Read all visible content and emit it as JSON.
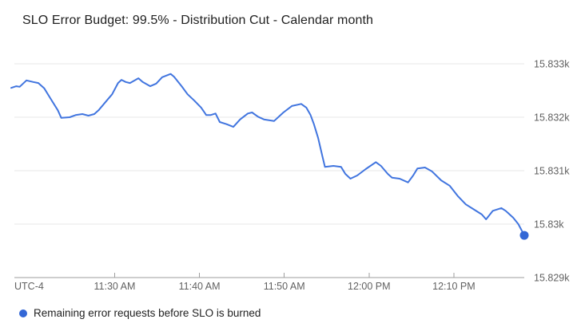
{
  "title": "SLO Error Budget: 99.5% - Distribution Cut - Calendar month",
  "legend": {
    "label": "Remaining error requests before SLO is burned",
    "marker_color": "#3367d6"
  },
  "colors": {
    "line": "#4175df",
    "endpoint_marker": "#3367d6",
    "gridline": "#e7e7e7",
    "axis_line": "#9e9e9e",
    "tick_label": "#616161",
    "title_text": "#212121",
    "background": "#ffffff"
  },
  "chart_data": {
    "type": "line",
    "title": "SLO Error Budget: 99.5% - Distribution Cut - Calendar month",
    "grid": true,
    "legend_position": "bottom-left",
    "x_axis": {
      "utc_offset_label": "UTC-4",
      "domain_minutes": [
        0,
        60.5
      ],
      "ticks": [
        {
          "label": "11:30 AM",
          "t": 12.2
        },
        {
          "label": "11:40 AM",
          "t": 22.2
        },
        {
          "label": "11:50 AM",
          "t": 32.2
        },
        {
          "label": "12:00 PM",
          "t": 42.2
        },
        {
          "label": "12:10 PM",
          "t": 52.2
        }
      ]
    },
    "y_axis": {
      "range": [
        15829,
        15833.2
      ],
      "ticks": [
        {
          "label": "15.833k",
          "v": 15833
        },
        {
          "label": "15.832k",
          "v": 15832
        },
        {
          "label": "15.831k",
          "v": 15831
        },
        {
          "label": "15.83k",
          "v": 15830
        },
        {
          "label": "15.829k",
          "v": 15829
        }
      ]
    },
    "series": [
      {
        "name": "Remaining error requests before SLO is burned",
        "color": "#4175df",
        "end_marker": true,
        "end_marker_color": "#3367d6",
        "points": [
          [
            0.0,
            15832.55
          ],
          [
            0.6,
            15832.58
          ],
          [
            1.0,
            15832.57
          ],
          [
            1.8,
            15832.69
          ],
          [
            2.6,
            15832.66
          ],
          [
            3.2,
            15832.64
          ],
          [
            3.9,
            15832.54
          ],
          [
            4.6,
            15832.36
          ],
          [
            5.5,
            15832.13
          ],
          [
            5.9,
            15831.99
          ],
          [
            6.9,
            15832.0
          ],
          [
            7.6,
            15832.04
          ],
          [
            8.4,
            15832.06
          ],
          [
            9.1,
            15832.03
          ],
          [
            9.8,
            15832.06
          ],
          [
            10.3,
            15832.13
          ],
          [
            11.1,
            15832.28
          ],
          [
            11.9,
            15832.43
          ],
          [
            12.6,
            15832.64
          ],
          [
            13.0,
            15832.7
          ],
          [
            13.5,
            15832.66
          ],
          [
            14.0,
            15832.64
          ],
          [
            15.0,
            15832.73
          ],
          [
            15.5,
            15832.66
          ],
          [
            16.4,
            15832.58
          ],
          [
            17.1,
            15832.63
          ],
          [
            17.8,
            15832.75
          ],
          [
            18.8,
            15832.81
          ],
          [
            19.2,
            15832.76
          ],
          [
            20.1,
            15832.58
          ],
          [
            20.8,
            15832.43
          ],
          [
            21.6,
            15832.31
          ],
          [
            22.4,
            15832.18
          ],
          [
            23.0,
            15832.04
          ],
          [
            23.5,
            15832.04
          ],
          [
            24.1,
            15832.07
          ],
          [
            24.6,
            15831.91
          ],
          [
            25.4,
            15831.87
          ],
          [
            26.2,
            15831.82
          ],
          [
            27.0,
            15831.96
          ],
          [
            27.9,
            15832.07
          ],
          [
            28.4,
            15832.09
          ],
          [
            29.1,
            15832.01
          ],
          [
            29.8,
            15831.96
          ],
          [
            31.0,
            15831.93
          ],
          [
            32.1,
            15832.09
          ],
          [
            33.1,
            15832.21
          ],
          [
            34.2,
            15832.25
          ],
          [
            34.8,
            15832.18
          ],
          [
            35.3,
            15832.04
          ],
          [
            35.7,
            15831.87
          ],
          [
            36.2,
            15831.61
          ],
          [
            36.7,
            15831.27
          ],
          [
            37.0,
            15831.07
          ],
          [
            38.0,
            15831.09
          ],
          [
            38.9,
            15831.07
          ],
          [
            39.4,
            15830.94
          ],
          [
            40.0,
            15830.85
          ],
          [
            40.8,
            15830.91
          ],
          [
            41.8,
            15831.03
          ],
          [
            43.0,
            15831.16
          ],
          [
            43.6,
            15831.09
          ],
          [
            44.4,
            15830.94
          ],
          [
            44.9,
            15830.87
          ],
          [
            45.8,
            15830.85
          ],
          [
            46.8,
            15830.78
          ],
          [
            47.4,
            15830.91
          ],
          [
            47.9,
            15831.04
          ],
          [
            48.8,
            15831.06
          ],
          [
            49.6,
            15830.99
          ],
          [
            50.7,
            15830.82
          ],
          [
            51.7,
            15830.72
          ],
          [
            52.7,
            15830.52
          ],
          [
            53.6,
            15830.37
          ],
          [
            54.6,
            15830.27
          ],
          [
            55.5,
            15830.18
          ],
          [
            56.0,
            15830.09
          ],
          [
            56.8,
            15830.25
          ],
          [
            57.8,
            15830.3
          ],
          [
            58.3,
            15830.25
          ],
          [
            59.2,
            15830.12
          ],
          [
            59.8,
            15830.0
          ],
          [
            60.5,
            15829.79
          ]
        ]
      }
    ]
  }
}
